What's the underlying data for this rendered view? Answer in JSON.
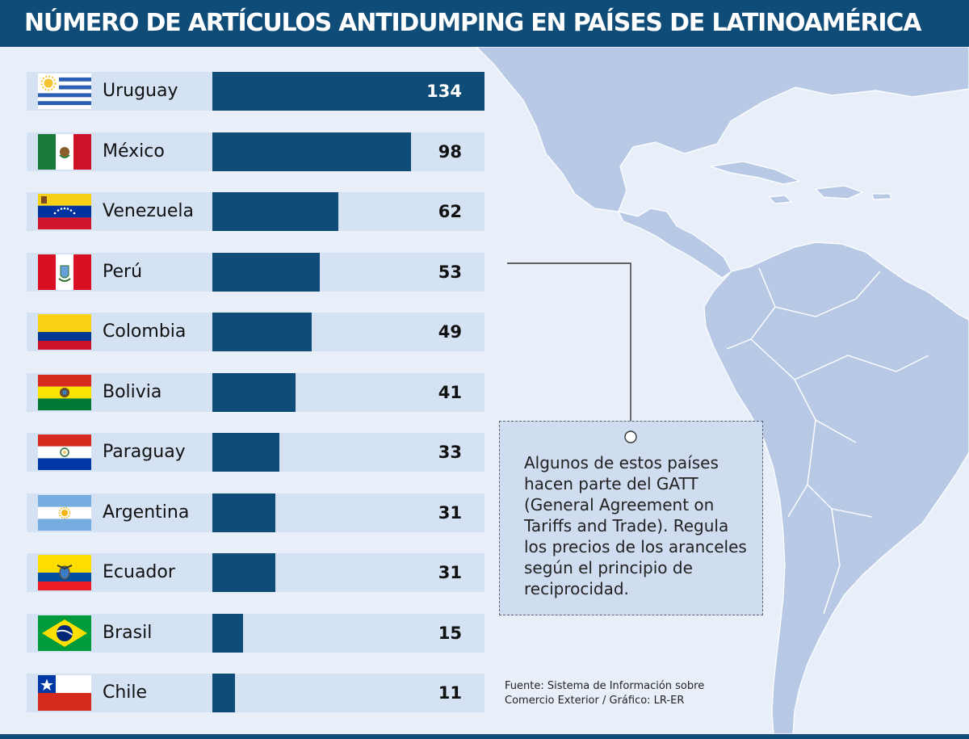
{
  "title": "NÚMERO DE ARTÍCULOS ANTIDUMPING EN PAÍSES DE LATINOAMÉRICA",
  "colors": {
    "header": "#0f4c78",
    "bar": "#0f4c78",
    "row_background": "#d4e2f4",
    "page_background": "#e9eff9",
    "map_land": "#b8c9e6",
    "value_on_bar": "#ffffff",
    "value_off_bar": "#111111"
  },
  "chart_data": {
    "type": "bar",
    "orientation": "horizontal",
    "title": "NÚMERO DE ARTÍCULOS ANTIDUMPING EN PAÍSES DE LATINOAMÉRICA",
    "xlabel": "",
    "ylabel": "",
    "xlim": [
      0,
      134
    ],
    "grid": false,
    "categories": [
      "Uruguay",
      "México",
      "Venezuela",
      "Perú",
      "Colombia",
      "Bolivia",
      "Paraguay",
      "Argentina",
      "Ecuador",
      "Brasil",
      "Chile"
    ],
    "values": [
      134,
      98,
      62,
      53,
      49,
      41,
      33,
      31,
      31,
      15,
      11
    ],
    "flag_icons": [
      "uruguay-flag-icon",
      "mexico-flag-icon",
      "venezuela-flag-icon",
      "peru-flag-icon",
      "colombia-flag-icon",
      "bolivia-flag-icon",
      "paraguay-flag-icon",
      "argentina-flag-icon",
      "ecuador-flag-icon",
      "brazil-flag-icon",
      "chile-flag-icon"
    ]
  },
  "annotation": {
    "text": "Algunos de estos países hacen parte del GATT (General Agreement on Tariffs and Trade). Regula los precios de los aranceles según el principio de reciprocidad."
  },
  "source": {
    "line1": "Fuente: Sistema de Información sobre",
    "line2": "Comercio Exterior / Gráfico: LR-ER"
  }
}
